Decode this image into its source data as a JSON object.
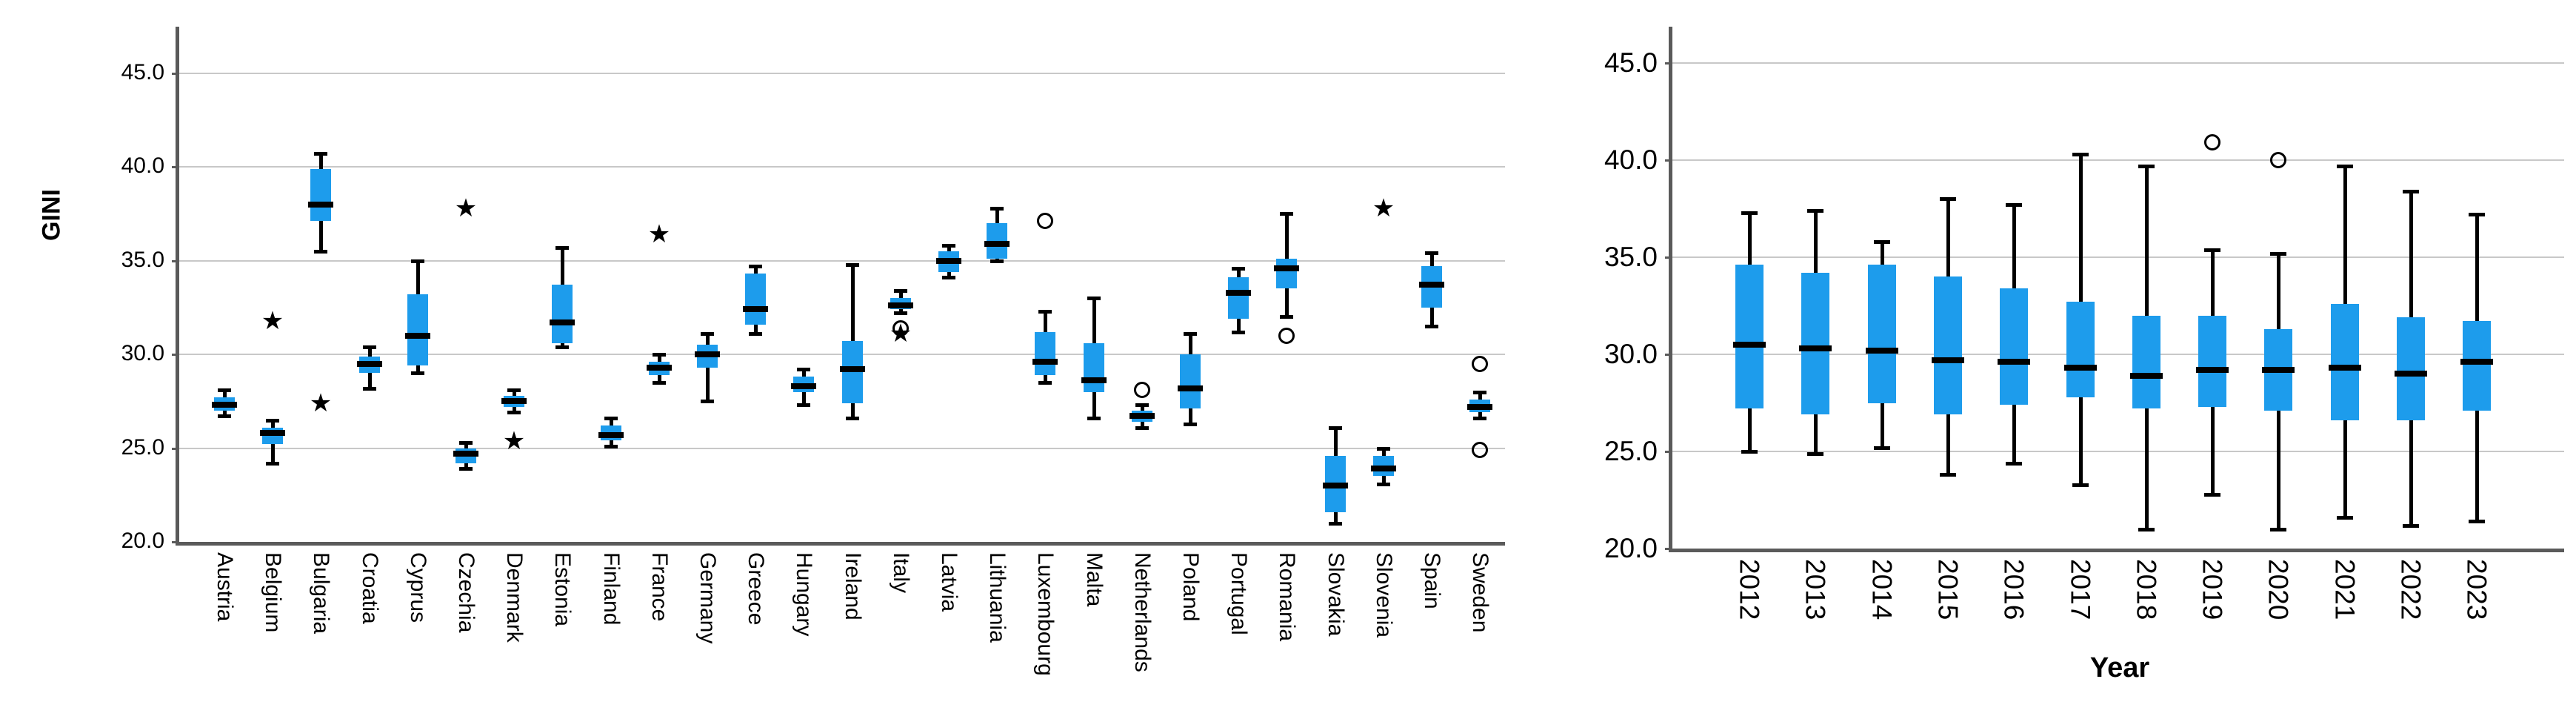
{
  "colors": {
    "box_fill": "#1d9cec",
    "median_line": "#000000",
    "whisker": "#000000",
    "gridline": "#c8c8c8",
    "axis_line": "#5a5a5a",
    "background": "#ffffff",
    "text": "#000000"
  },
  "left_chart": {
    "ylabel": "GINI"
  },
  "right_chart": {
    "xlabel": "Year"
  },
  "chart_data": [
    {
      "type": "boxplot",
      "title": "",
      "xlabel": "",
      "ylabel": "GINI",
      "ylim": [
        20.0,
        47.5
      ],
      "grid": true,
      "legend_position": "none",
      "yticks": [
        {
          "label": "45.0",
          "value": 45.0
        },
        {
          "label": "40.0",
          "value": 40.0
        },
        {
          "label": "35.0",
          "value": 35.0
        },
        {
          "label": "30.0",
          "value": 30.0
        },
        {
          "label": "25.0",
          "value": 25.0
        },
        {
          "label": "20.0",
          "value": 20.0
        }
      ],
      "series": [
        {
          "name": "Austria",
          "min": 26.7,
          "q1": 27.0,
          "median": 27.3,
          "q3": 27.7,
          "max": 28.1,
          "outliers": []
        },
        {
          "name": "Belgium",
          "min": 24.2,
          "q1": 25.2,
          "median": 25.8,
          "q3": 26.1,
          "max": 26.5,
          "outliers": [
            {
              "shape": "star",
              "value": 31.2
            }
          ]
        },
        {
          "name": "Bulgaria",
          "min": 35.5,
          "q1": 37.1,
          "median": 38.0,
          "q3": 39.9,
          "max": 40.7,
          "outliers": [
            {
              "shape": "star",
              "value": 26.8
            }
          ]
        },
        {
          "name": "Croatia",
          "min": 28.2,
          "q1": 29.0,
          "median": 29.5,
          "q3": 29.9,
          "max": 30.4,
          "outliers": []
        },
        {
          "name": "Cyprus",
          "min": 29.0,
          "q1": 29.4,
          "median": 31.0,
          "q3": 33.2,
          "max": 35.0,
          "outliers": []
        },
        {
          "name": "Czechia",
          "min": 23.9,
          "q1": 24.2,
          "median": 24.7,
          "q3": 25.0,
          "max": 25.3,
          "outliers": [
            {
              "shape": "star",
              "value": 37.2
            }
          ]
        },
        {
          "name": "Denmark",
          "min": 26.9,
          "q1": 27.2,
          "median": 27.5,
          "q3": 27.8,
          "max": 28.1,
          "outliers": [
            {
              "shape": "star",
              "value": 24.8
            }
          ]
        },
        {
          "name": "Estonia",
          "min": 30.4,
          "q1": 30.6,
          "median": 31.7,
          "q3": 33.7,
          "max": 35.7,
          "outliers": []
        },
        {
          "name": "Finland",
          "min": 25.1,
          "q1": 25.4,
          "median": 25.7,
          "q3": 26.2,
          "max": 26.6,
          "outliers": []
        },
        {
          "name": "France",
          "min": 28.5,
          "q1": 28.9,
          "median": 29.3,
          "q3": 29.6,
          "max": 30.0,
          "outliers": [
            {
              "shape": "star",
              "value": 35.8
            }
          ]
        },
        {
          "name": "Germany",
          "min": 27.5,
          "q1": 29.3,
          "median": 30.0,
          "q3": 30.5,
          "max": 31.1,
          "outliers": []
        },
        {
          "name": "Greece",
          "min": 31.1,
          "q1": 31.6,
          "median": 32.4,
          "q3": 34.3,
          "max": 34.7,
          "outliers": []
        },
        {
          "name": "Hungary",
          "min": 27.3,
          "q1": 28.0,
          "median": 28.3,
          "q3": 28.8,
          "max": 29.2,
          "outliers": []
        },
        {
          "name": "Ireland",
          "min": 26.6,
          "q1": 27.4,
          "median": 29.2,
          "q3": 30.7,
          "max": 34.8,
          "outliers": []
        },
        {
          "name": "Italy",
          "min": 32.2,
          "q1": 32.4,
          "median": 32.6,
          "q3": 33.0,
          "max": 33.4,
          "outliers": [
            {
              "shape": "circle",
              "value": 31.4
            },
            {
              "shape": "star",
              "value": 30.5
            }
          ]
        },
        {
          "name": "Latvia",
          "min": 34.1,
          "q1": 34.4,
          "median": 35.0,
          "q3": 35.5,
          "max": 35.8,
          "outliers": []
        },
        {
          "name": "Lithuania",
          "min": 35.0,
          "q1": 35.1,
          "median": 35.9,
          "q3": 37.0,
          "max": 37.8,
          "outliers": []
        },
        {
          "name": "Luxembourg",
          "min": 28.5,
          "q1": 28.9,
          "median": 29.6,
          "q3": 31.2,
          "max": 32.3,
          "outliers": [
            {
              "shape": "circle",
              "value": 37.1
            }
          ]
        },
        {
          "name": "Malta",
          "min": 26.6,
          "q1": 28.0,
          "median": 28.6,
          "q3": 30.6,
          "max": 33.0,
          "outliers": []
        },
        {
          "name": "Netherlands",
          "min": 26.1,
          "q1": 26.4,
          "median": 26.7,
          "q3": 27.0,
          "max": 27.3,
          "outliers": [
            {
              "shape": "circle",
              "value": 28.1
            }
          ]
        },
        {
          "name": "Poland",
          "min": 26.3,
          "q1": 27.1,
          "median": 28.2,
          "q3": 30.0,
          "max": 31.1,
          "outliers": []
        },
        {
          "name": "Portugal",
          "min": 31.2,
          "q1": 31.9,
          "median": 33.3,
          "q3": 34.1,
          "max": 34.6,
          "outliers": []
        },
        {
          "name": "Romania",
          "min": 32.0,
          "q1": 33.5,
          "median": 34.6,
          "q3": 35.1,
          "max": 37.5,
          "outliers": [
            {
              "shape": "circle",
              "value": 31.0
            }
          ]
        },
        {
          "name": "Slovakia",
          "min": 21.0,
          "q1": 21.6,
          "median": 23.0,
          "q3": 24.6,
          "max": 26.1,
          "outliers": []
        },
        {
          "name": "Slovenia",
          "min": 23.1,
          "q1": 23.5,
          "median": 23.9,
          "q3": 24.6,
          "max": 25.0,
          "outliers": [
            {
              "shape": "star",
              "value": 37.2
            }
          ]
        },
        {
          "name": "Spain",
          "min": 31.5,
          "q1": 32.5,
          "median": 33.7,
          "q3": 34.7,
          "max": 35.4,
          "outliers": []
        },
        {
          "name": "Sweden",
          "min": 26.6,
          "q1": 26.9,
          "median": 27.2,
          "q3": 27.6,
          "max": 28.0,
          "outliers": [
            {
              "shape": "circle",
              "value": 29.5
            },
            {
              "shape": "circle",
              "value": 24.9
            }
          ]
        }
      ]
    },
    {
      "type": "boxplot",
      "title": "",
      "xlabel": "Year",
      "ylabel": "",
      "ylim": [
        20.0,
        47.5
      ],
      "grid": true,
      "legend_position": "none",
      "yticks": [
        {
          "label": "45.0",
          "value": 45.0
        },
        {
          "label": "40.0",
          "value": 40.0
        },
        {
          "label": "35.0",
          "value": 35.0
        },
        {
          "label": "30.0",
          "value": 30.0
        },
        {
          "label": "25.0",
          "value": 25.0
        },
        {
          "label": "20.0",
          "value": 20.0
        }
      ],
      "series": [
        {
          "name": "2012",
          "min": 25.0,
          "q1": 27.2,
          "median": 30.5,
          "q3": 34.6,
          "max": 37.3,
          "outliers": []
        },
        {
          "name": "2013",
          "min": 24.9,
          "q1": 26.9,
          "median": 30.3,
          "q3": 34.2,
          "max": 37.4,
          "outliers": []
        },
        {
          "name": "2014",
          "min": 25.2,
          "q1": 27.5,
          "median": 30.2,
          "q3": 34.6,
          "max": 35.8,
          "outliers": []
        },
        {
          "name": "2015",
          "min": 23.8,
          "q1": 26.9,
          "median": 29.7,
          "q3": 34.0,
          "max": 38.0,
          "outliers": []
        },
        {
          "name": "2016",
          "min": 24.4,
          "q1": 27.4,
          "median": 29.6,
          "q3": 33.4,
          "max": 37.7,
          "outliers": []
        },
        {
          "name": "2017",
          "min": 23.3,
          "q1": 27.8,
          "median": 29.3,
          "q3": 32.7,
          "max": 40.3,
          "outliers": []
        },
        {
          "name": "2018",
          "min": 21.0,
          "q1": 27.2,
          "median": 28.9,
          "q3": 32.0,
          "max": 39.7,
          "outliers": []
        },
        {
          "name": "2019",
          "min": 22.8,
          "q1": 27.3,
          "median": 29.2,
          "q3": 32.0,
          "max": 35.4,
          "outliers": [
            {
              "shape": "circle",
              "value": 40.9
            }
          ]
        },
        {
          "name": "2020",
          "min": 21.0,
          "q1": 27.1,
          "median": 29.2,
          "q3": 31.3,
          "max": 35.2,
          "outliers": [
            {
              "shape": "circle",
              "value": 40.0
            }
          ]
        },
        {
          "name": "2021",
          "min": 21.6,
          "q1": 26.6,
          "median": 29.3,
          "q3": 32.6,
          "max": 39.7,
          "outliers": []
        },
        {
          "name": "2022",
          "min": 21.2,
          "q1": 26.6,
          "median": 29.0,
          "q3": 31.9,
          "max": 38.4,
          "outliers": []
        },
        {
          "name": "2023",
          "min": 21.4,
          "q1": 27.1,
          "median": 29.6,
          "q3": 31.7,
          "max": 37.2,
          "outliers": []
        }
      ]
    }
  ]
}
